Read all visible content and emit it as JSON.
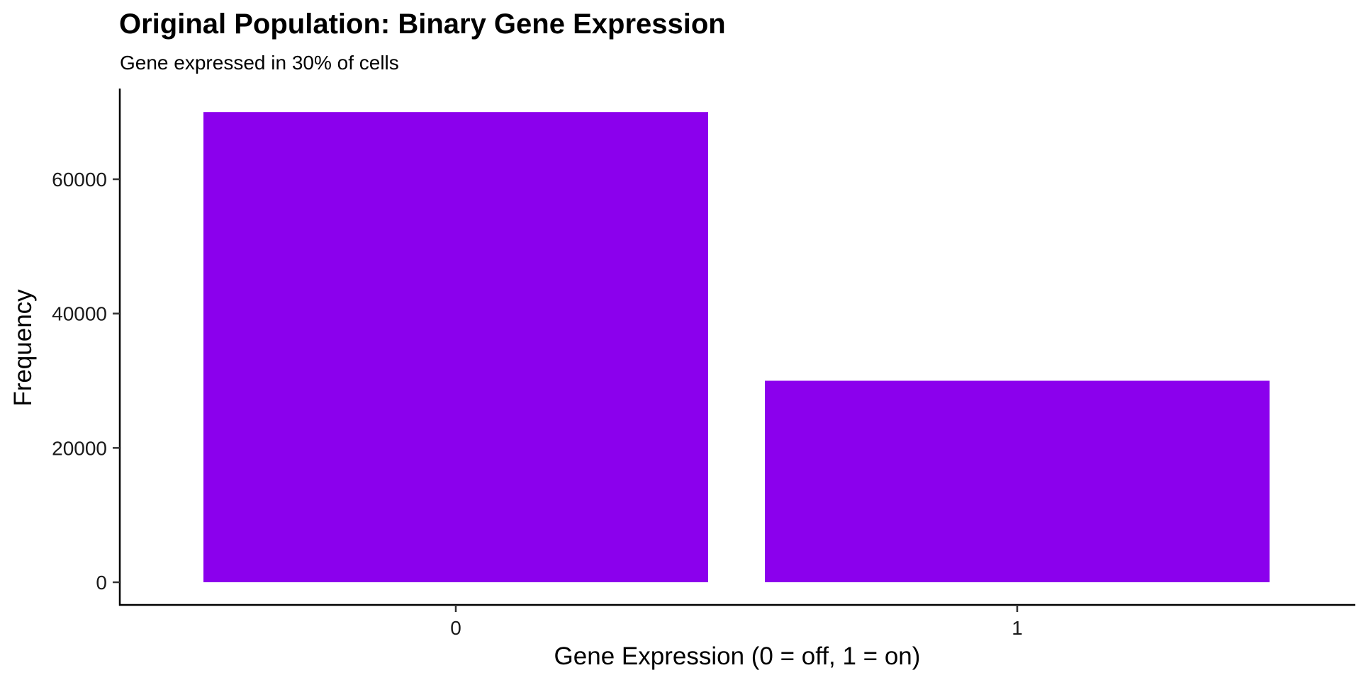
{
  "chart_data": {
    "type": "bar",
    "title": "Original Population: Binary Gene Expression",
    "subtitle": "Gene expressed in 30% of cells",
    "xlabel": "Gene Expression (0 = off, 1 = on)",
    "ylabel": "Frequency",
    "categories": [
      "0",
      "1"
    ],
    "values": [
      70000,
      30000
    ],
    "ylim": [
      0,
      73500
    ],
    "yticks": [
      0,
      20000,
      40000,
      60000
    ],
    "ytick_labels": [
      "0",
      "20000",
      "40000",
      "60000"
    ],
    "bar_color": "#8B00ED",
    "grid": false,
    "legend": "none"
  }
}
